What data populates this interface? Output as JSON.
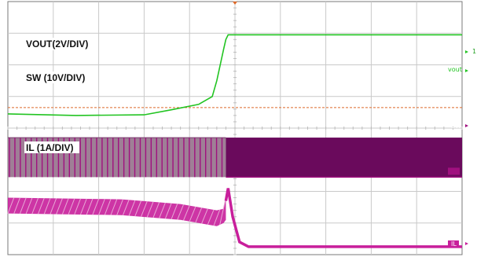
{
  "chart_data": {
    "type": "line",
    "title": "",
    "xlabel": "",
    "ylabel": "",
    "grid": true,
    "grid_divisions": {
      "x": 10,
      "y": 8
    },
    "time_axis_divisions": [
      0,
      10
    ],
    "series": [
      {
        "name": "VOUT(2V/DIV)",
        "label": "VOUT(2V/DIV)",
        "marker": "vout",
        "color": "#22c422",
        "waveform": "line",
        "points": [
          [
            0,
            3.55
          ],
          [
            1.5,
            3.6
          ],
          [
            3.0,
            3.58
          ],
          [
            3.6,
            3.42
          ],
          [
            4.2,
            3.25
          ],
          [
            4.5,
            3.0
          ],
          [
            4.6,
            2.5
          ],
          [
            4.75,
            1.5
          ],
          [
            4.8,
            1.2
          ],
          [
            4.85,
            1.05
          ],
          [
            10,
            1.05
          ]
        ]
      },
      {
        "name": "SW (10V/DIV)",
        "label": "SW (10V/DIV)",
        "marker": "SW",
        "color": "#a0107f",
        "waveform": "switching",
        "low_level": 5.55,
        "high_level": 4.3,
        "switch_time": 4.8,
        "pre_switch_color": "#9f7f96",
        "post_switch_color": "#6a0a5c"
      },
      {
        "name": "IL (1A/DIV)",
        "label": "IL (1A/DIV)",
        "marker": "IL",
        "color": "#c81f9b",
        "waveform": "triangle",
        "ripple_upper": [
          [
            0,
            6.2
          ],
          [
            2.5,
            6.25
          ],
          [
            3.8,
            6.4
          ],
          [
            4.6,
            6.6
          ],
          [
            4.75,
            6.55
          ],
          [
            4.8,
            6.2
          ]
        ],
        "ripple_lower": [
          [
            0,
            6.7
          ],
          [
            2.5,
            6.75
          ],
          [
            3.8,
            6.9
          ],
          [
            4.6,
            7.1
          ],
          [
            4.75,
            7.0
          ],
          [
            4.8,
            6.9
          ]
        ],
        "transient": [
          [
            4.8,
            6.3
          ],
          [
            4.85,
            5.9
          ],
          [
            4.95,
            6.8
          ],
          [
            5.1,
            7.6
          ],
          [
            5.3,
            7.75
          ],
          [
            10,
            7.75
          ]
        ]
      }
    ],
    "trigger_level_marker": {
      "name": "1",
      "color": "#dd6a2a",
      "level": 3.35
    }
  }
}
